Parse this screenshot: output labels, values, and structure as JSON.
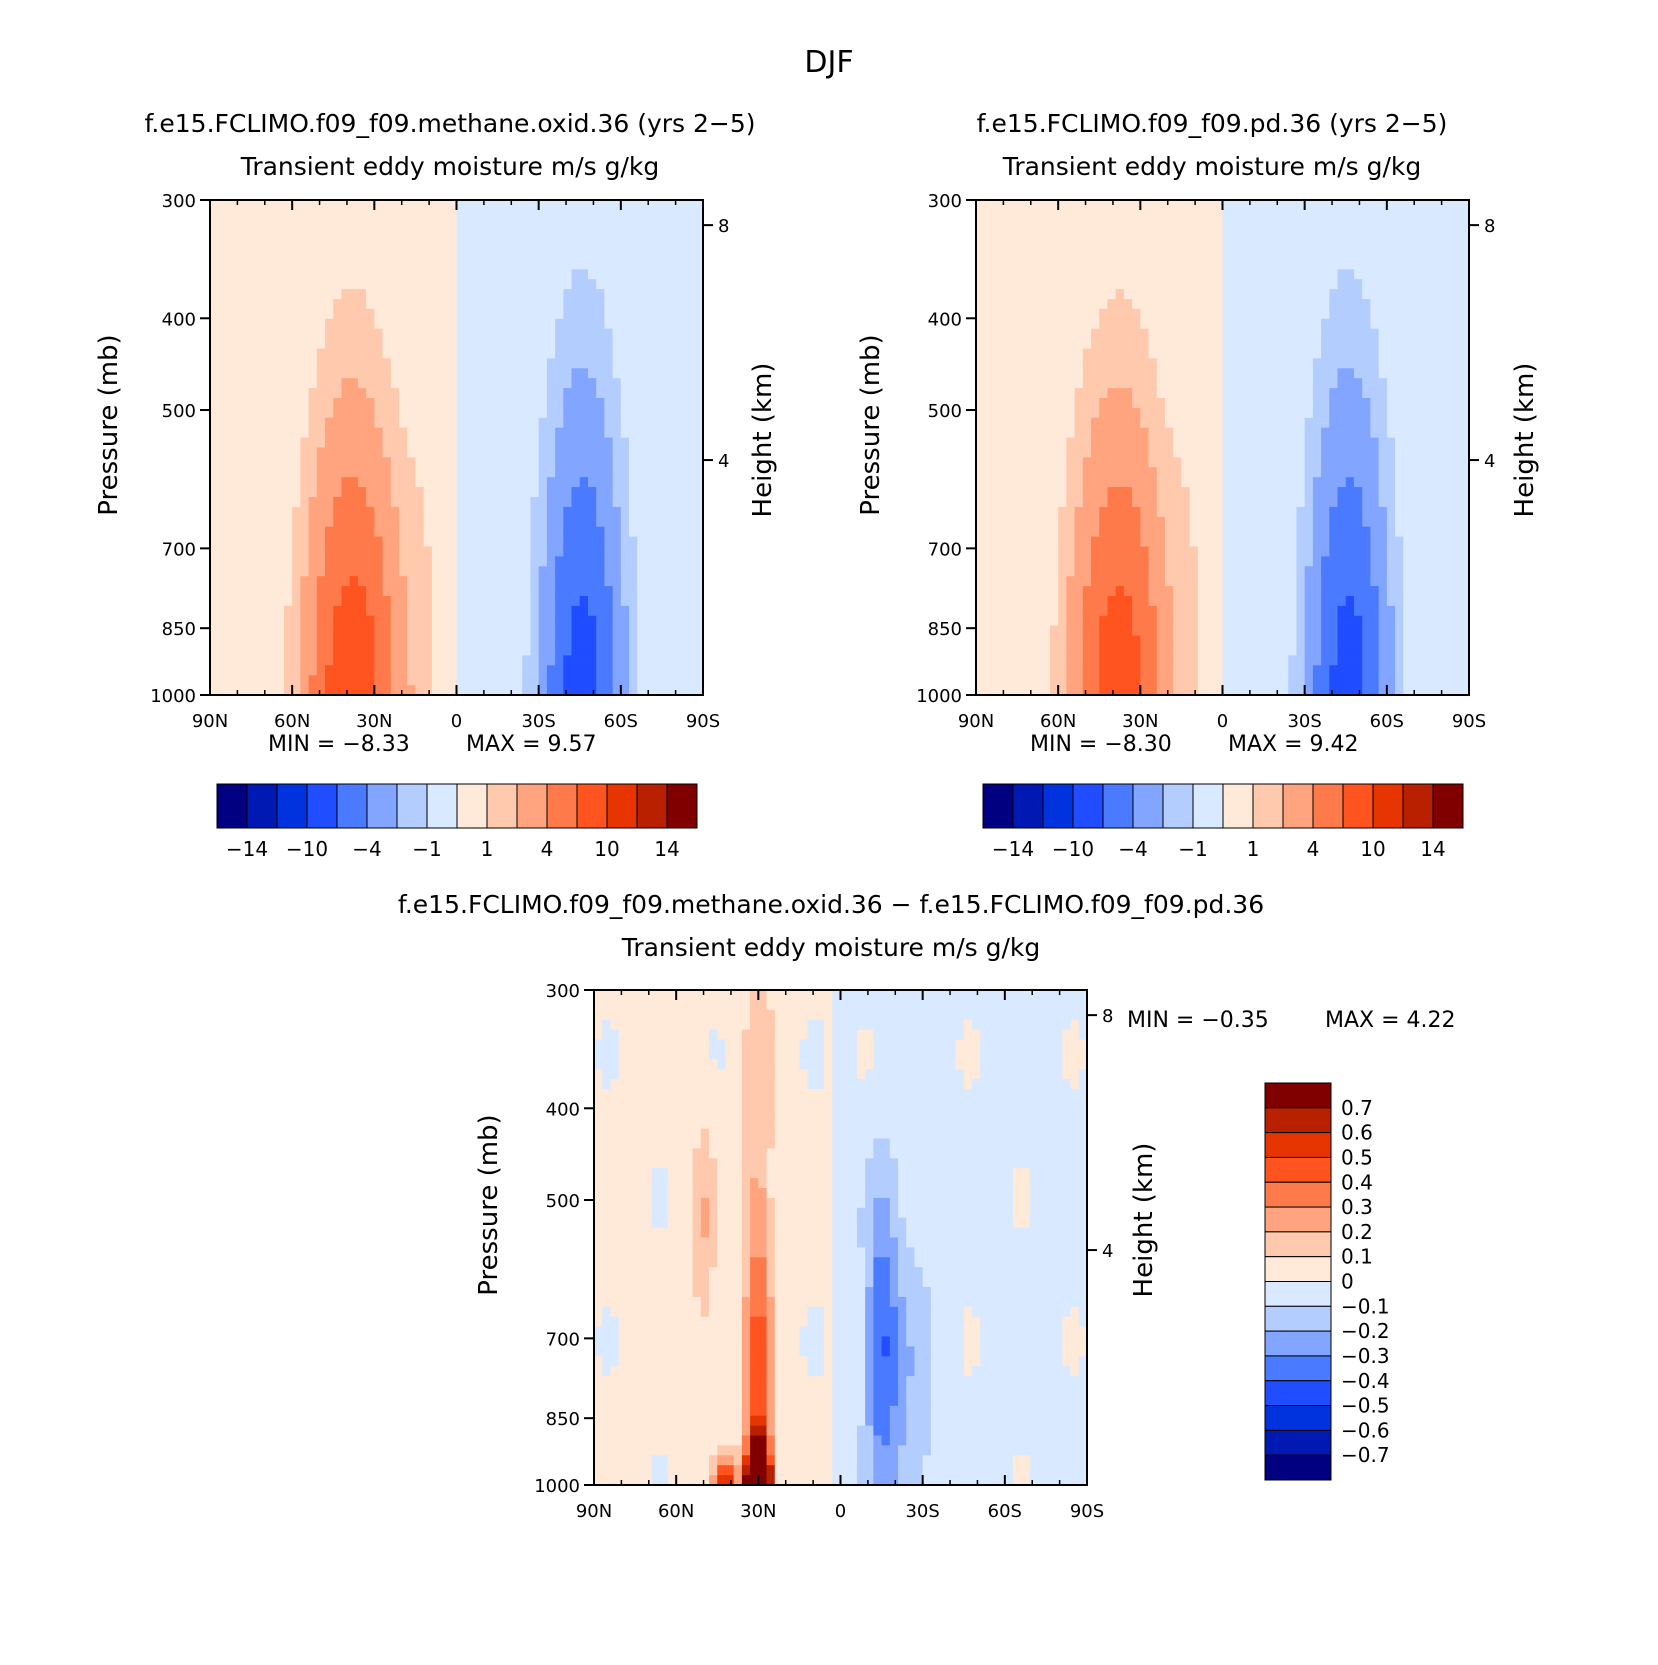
{
  "figure": {
    "title": "DJF"
  },
  "panels": [
    {
      "id": "p1",
      "title": "f.e15.FCLIMO.f09_f09.methane.oxid.36 (yrs 2−5)",
      "subtitle": "Transient eddy moisture m/s g/kg",
      "ylabel": "Pressure (mb)",
      "y2label": "Height (km)",
      "min_label": "MIN = −8.33",
      "max_label": "MAX = 9.57",
      "chart_data": {
        "type": "heatmap",
        "x_range": [
          90,
          -90
        ],
        "x_ticks": [
          "90N",
          "60N",
          "30N",
          "0",
          "30S",
          "60S",
          "90S"
        ],
        "y_ticks": [
          "300",
          "400",
          "500",
          "700",
          "850",
          "1000"
        ],
        "y_scale": "log-pressure",
        "y2_ticks": [
          "8",
          "4"
        ],
        "min": -8.33,
        "max": 9.57,
        "contour_levels": [
          -14,
          -12,
          -10,
          -7,
          -4,
          -2,
          -1,
          0,
          1,
          2,
          4,
          7,
          10,
          12,
          14
        ],
        "colorbar_labels": [
          "−14",
          "−10",
          "−4",
          "−1",
          "1",
          "4",
          "10",
          "14"
        ],
        "features": [
          {
            "sign": "positive",
            "peak": 9.57,
            "lat": 38,
            "p_top": 390,
            "note": "NH maximum near surface"
          },
          {
            "sign": "negative",
            "peak": -8.33,
            "lat": -45,
            "p_top": 400,
            "note": "SH minimum near surface"
          }
        ]
      }
    },
    {
      "id": "p2",
      "title": "f.e15.FCLIMO.f09_f09.pd.36 (yrs 2−5)",
      "subtitle": "Transient eddy moisture m/s g/kg",
      "ylabel": "Pressure (mb)",
      "y2label": "Height (km)",
      "min_label": "MIN = −8.30",
      "max_label": "MAX = 9.42",
      "chart_data": {
        "type": "heatmap",
        "x_range": [
          90,
          -90
        ],
        "x_ticks": [
          "90N",
          "60N",
          "30N",
          "0",
          "30S",
          "60S",
          "90S"
        ],
        "y_ticks": [
          "300",
          "400",
          "500",
          "700",
          "850",
          "1000"
        ],
        "y_scale": "log-pressure",
        "y2_ticks": [
          "8",
          "4"
        ],
        "min": -8.3,
        "max": 9.42,
        "contour_levels": [
          -14,
          -12,
          -10,
          -7,
          -4,
          -2,
          -1,
          0,
          1,
          2,
          4,
          7,
          10,
          12,
          14
        ],
        "colorbar_labels": [
          "−14",
          "−10",
          "−4",
          "−1",
          "1",
          "4",
          "10",
          "14"
        ],
        "features": [
          {
            "sign": "positive",
            "peak": 9.42,
            "lat": 38,
            "p_top": 390
          },
          {
            "sign": "negative",
            "peak": -8.3,
            "lat": -45,
            "p_top": 400
          }
        ]
      }
    },
    {
      "id": "p3",
      "title": "f.e15.FCLIMO.f09_f09.methane.oxid.36 − f.e15.FCLIMO.f09_f09.pd.36",
      "subtitle": "Transient eddy moisture m/s g/kg",
      "ylabel": "Pressure (mb)",
      "y2label": "Height (km)",
      "min_label": "MIN = −0.35",
      "max_label": "MAX = 4.22",
      "chart_data": {
        "type": "heatmap",
        "x_range": [
          90,
          -90
        ],
        "x_ticks": [
          "90N",
          "60N",
          "30N",
          "0",
          "30S",
          "60S",
          "90S"
        ],
        "y_ticks": [
          "300",
          "400",
          "500",
          "700",
          "850",
          "1000"
        ],
        "y_scale": "log-pressure",
        "y2_ticks": [
          "8",
          "4"
        ],
        "min": -0.35,
        "max": 4.22,
        "contour_levels": [
          -0.7,
          -0.6,
          -0.5,
          -0.4,
          -0.3,
          -0.2,
          -0.1,
          0,
          0.1,
          0.2,
          0.3,
          0.4,
          0.5,
          0.6,
          0.7
        ],
        "colorbar_labels": [
          "0.7",
          "0.6",
          "0.5",
          "0.4",
          "0.3",
          "0.2",
          "0.1",
          "0",
          "−0.1",
          "−0.2",
          "−0.3",
          "−0.4",
          "−0.5",
          "−0.6",
          "−0.7"
        ],
        "features": [
          {
            "sign": "positive",
            "peak": 4.22,
            "lat": 30,
            "p_top": 440,
            "note": "maximum near 30N surface"
          },
          {
            "sign": "negative",
            "peak": -0.35,
            "lat": -15,
            "p_top": 520
          }
        ]
      }
    }
  ],
  "palette": {
    "colors": [
      "#000080",
      "#0019b3",
      "#0033dd",
      "#1f4dff",
      "#4a7aff",
      "#82a5ff",
      "#b4cdff",
      "#d9e9ff",
      "#ffe9d9",
      "#ffc9ae",
      "#ffa47f",
      "#ff7a4a",
      "#ff5420",
      "#e63500",
      "#b82000",
      "#800000"
    ]
  }
}
